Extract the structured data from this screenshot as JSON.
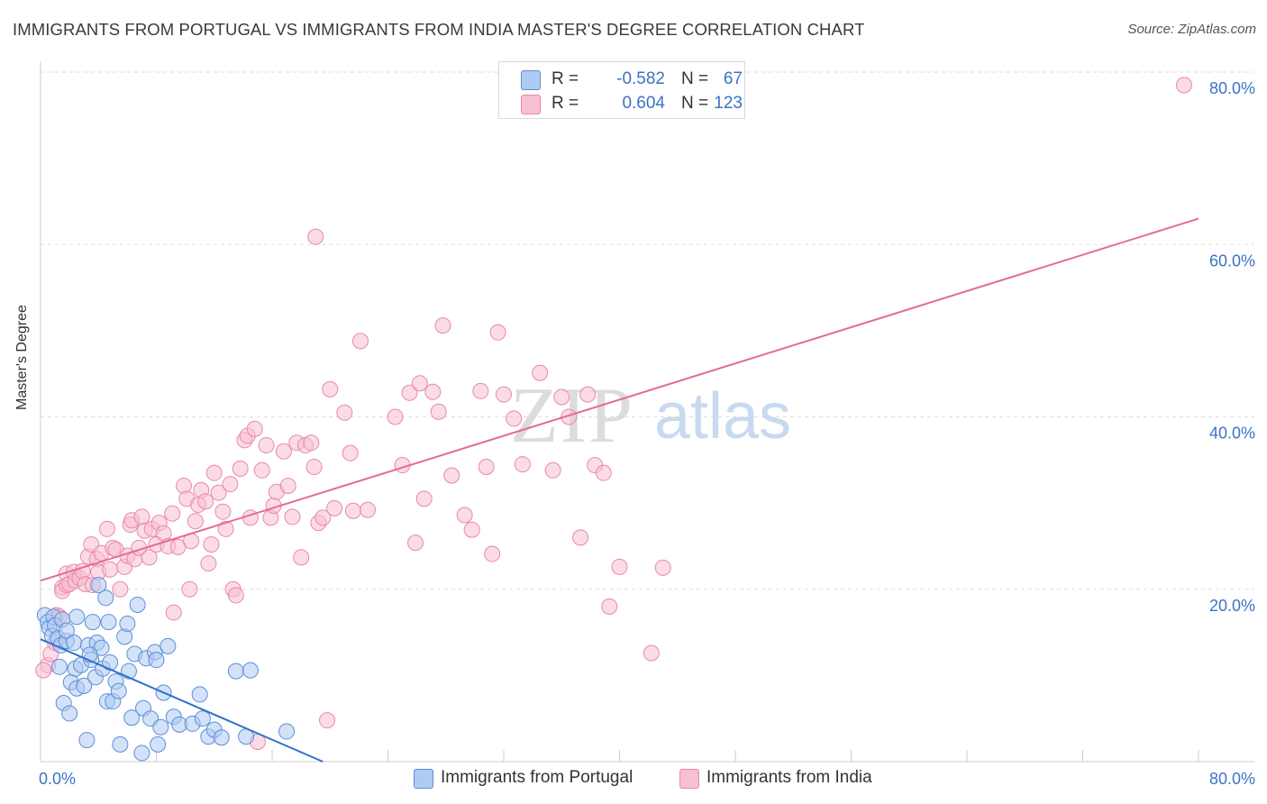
{
  "title": "IMMIGRANTS FROM PORTUGAL VS IMMIGRANTS FROM INDIA MASTER'S DEGREE CORRELATION CHART",
  "source": "Source: ZipAtlas.com",
  "watermark": {
    "zip": "ZIP",
    "atlas": "atlas"
  },
  "legend": {
    "r_label": "R =",
    "n_label": "N =",
    "portugal": {
      "r": "-0.582",
      "n": "67"
    },
    "india": {
      "r": "0.604",
      "n": "123"
    }
  },
  "colors": {
    "portugal_fill": "#aecbf2",
    "portugal_stroke": "#5b8fd9",
    "portugal_line": "#2f72c9",
    "india_fill": "#f7bfd2",
    "india_stroke": "#e889a8",
    "india_line": "#e56b94",
    "axis_label": "#3b73c4"
  },
  "chart_data": {
    "type": "scatter",
    "title": "IMMIGRANTS FROM PORTUGAL VS IMMIGRANTS FROM INDIA MASTER'S DEGREE CORRELATION CHART",
    "xlabel": "",
    "ylabel": "Master's Degree",
    "xlim": [
      0,
      80
    ],
    "ylim": [
      0,
      80
    ],
    "x_tick_labels": [
      "0.0%",
      "80.0%"
    ],
    "y_tick_labels": [
      {
        "value": 80,
        "label": "80.0%"
      },
      {
        "value": 60,
        "label": "60.0%"
      },
      {
        "value": 40,
        "label": "40.0%"
      },
      {
        "value": 20,
        "label": "20.0%"
      }
    ],
    "grid": true,
    "series": [
      {
        "name": "Immigrants from Portugal",
        "r": -0.582,
        "n": 67,
        "trend": {
          "x": [
            0,
            19.5
          ],
          "y": [
            14.2,
            0
          ]
        },
        "points": [
          [
            0.3,
            17.0
          ],
          [
            0.5,
            16.2
          ],
          [
            0.6,
            15.5
          ],
          [
            0.8,
            14.6
          ],
          [
            0.9,
            16.8
          ],
          [
            1.0,
            15.8
          ],
          [
            1.2,
            14.3
          ],
          [
            1.3,
            11.0
          ],
          [
            1.4,
            13.5
          ],
          [
            1.5,
            16.5
          ],
          [
            1.6,
            6.8
          ],
          [
            1.8,
            14.0
          ],
          [
            1.8,
            15.2
          ],
          [
            2.0,
            5.6
          ],
          [
            2.1,
            9.2
          ],
          [
            2.3,
            13.8
          ],
          [
            2.4,
            10.8
          ],
          [
            2.5,
            8.5
          ],
          [
            2.5,
            16.8
          ],
          [
            2.8,
            11.2
          ],
          [
            3.0,
            8.8
          ],
          [
            3.2,
            2.5
          ],
          [
            3.3,
            13.5
          ],
          [
            3.5,
            11.8
          ],
          [
            3.6,
            16.2
          ],
          [
            3.8,
            9.8
          ],
          [
            3.9,
            13.8
          ],
          [
            4.0,
            20.5
          ],
          [
            4.2,
            13.2
          ],
          [
            4.3,
            10.8
          ],
          [
            4.5,
            19.0
          ],
          [
            4.6,
            7.0
          ],
          [
            4.7,
            16.2
          ],
          [
            4.8,
            11.5
          ],
          [
            5.0,
            7.0
          ],
          [
            5.2,
            9.3
          ],
          [
            5.5,
            2.0
          ],
          [
            5.8,
            14.5
          ],
          [
            6.1,
            10.5
          ],
          [
            6.3,
            5.1
          ],
          [
            6.5,
            12.5
          ],
          [
            6.7,
            18.2
          ],
          [
            7.0,
            1.0
          ],
          [
            7.1,
            6.2
          ],
          [
            7.3,
            12.0
          ],
          [
            7.6,
            5.0
          ],
          [
            7.9,
            12.7
          ],
          [
            8.0,
            11.8
          ],
          [
            8.1,
            2.0
          ],
          [
            8.3,
            4.0
          ],
          [
            8.5,
            8.0
          ],
          [
            8.8,
            13.4
          ],
          [
            9.2,
            5.2
          ],
          [
            9.6,
            4.3
          ],
          [
            10.5,
            4.4
          ],
          [
            11.0,
            7.8
          ],
          [
            11.2,
            5.0
          ],
          [
            11.6,
            2.9
          ],
          [
            12.0,
            3.7
          ],
          [
            12.5,
            2.8
          ],
          [
            13.5,
            10.5
          ],
          [
            14.2,
            2.9
          ],
          [
            14.5,
            10.6
          ],
          [
            17.0,
            3.5
          ],
          [
            5.4,
            8.2
          ],
          [
            3.4,
            12.4
          ],
          [
            6.0,
            16.0
          ]
        ]
      },
      {
        "name": "Immigrants from India",
        "r": 0.604,
        "n": 123,
        "trend": {
          "x": [
            0,
            80
          ],
          "y": [
            21.0,
            63.0
          ]
        },
        "points": [
          [
            0.5,
            11.2
          ],
          [
            0.7,
            12.5
          ],
          [
            1.0,
            13.8
          ],
          [
            1.1,
            17.0
          ],
          [
            1.3,
            16.8
          ],
          [
            1.5,
            20.2
          ],
          [
            1.5,
            19.8
          ],
          [
            1.8,
            20.5
          ],
          [
            1.8,
            21.8
          ],
          [
            2.0,
            20.6
          ],
          [
            2.3,
            22.0
          ],
          [
            2.4,
            21.0
          ],
          [
            2.7,
            21.3
          ],
          [
            2.9,
            22.1
          ],
          [
            3.1,
            20.6
          ],
          [
            3.3,
            23.8
          ],
          [
            3.5,
            25.2
          ],
          [
            3.6,
            20.5
          ],
          [
            3.9,
            23.5
          ],
          [
            4.0,
            22.0
          ],
          [
            4.2,
            24.2
          ],
          [
            4.6,
            27.0
          ],
          [
            4.8,
            22.3
          ],
          [
            5.0,
            24.8
          ],
          [
            5.2,
            24.6
          ],
          [
            5.5,
            20.0
          ],
          [
            5.8,
            22.6
          ],
          [
            6.0,
            23.9
          ],
          [
            6.2,
            27.5
          ],
          [
            6.3,
            28.0
          ],
          [
            6.5,
            23.5
          ],
          [
            6.8,
            24.8
          ],
          [
            7.0,
            28.4
          ],
          [
            7.2,
            26.8
          ],
          [
            7.5,
            23.7
          ],
          [
            7.7,
            27.0
          ],
          [
            8.0,
            25.2
          ],
          [
            8.2,
            27.7
          ],
          [
            8.5,
            26.5
          ],
          [
            8.8,
            25.0
          ],
          [
            9.1,
            28.8
          ],
          [
            9.2,
            17.3
          ],
          [
            9.5,
            24.9
          ],
          [
            9.9,
            32.0
          ],
          [
            10.1,
            30.5
          ],
          [
            10.3,
            20.0
          ],
          [
            10.4,
            25.6
          ],
          [
            10.7,
            27.9
          ],
          [
            10.9,
            29.8
          ],
          [
            11.1,
            31.5
          ],
          [
            11.4,
            30.2
          ],
          [
            11.6,
            23.0
          ],
          [
            11.8,
            25.2
          ],
          [
            12.0,
            33.5
          ],
          [
            12.3,
            31.2
          ],
          [
            12.6,
            29.0
          ],
          [
            12.8,
            27.0
          ],
          [
            13.1,
            32.2
          ],
          [
            13.3,
            20.0
          ],
          [
            13.5,
            19.3
          ],
          [
            13.8,
            34.0
          ],
          [
            14.1,
            37.3
          ],
          [
            14.3,
            37.8
          ],
          [
            14.5,
            28.3
          ],
          [
            14.8,
            38.6
          ],
          [
            15.3,
            33.8
          ],
          [
            15.6,
            36.7
          ],
          [
            15.9,
            28.3
          ],
          [
            16.1,
            29.7
          ],
          [
            16.3,
            31.3
          ],
          [
            16.8,
            36.0
          ],
          [
            17.1,
            32.0
          ],
          [
            17.4,
            28.4
          ],
          [
            17.7,
            37.0
          ],
          [
            18.0,
            23.7
          ],
          [
            18.3,
            36.7
          ],
          [
            18.7,
            37.0
          ],
          [
            18.9,
            34.2
          ],
          [
            19.2,
            27.7
          ],
          [
            19.5,
            28.3
          ],
          [
            19.0,
            60.9
          ],
          [
            19.8,
            4.8
          ],
          [
            20.0,
            43.2
          ],
          [
            20.3,
            29.4
          ],
          [
            21.0,
            40.5
          ],
          [
            21.4,
            35.8
          ],
          [
            21.6,
            29.1
          ],
          [
            22.1,
            48.8
          ],
          [
            22.6,
            29.2
          ],
          [
            24.5,
            40.0
          ],
          [
            25.0,
            34.4
          ],
          [
            25.5,
            42.8
          ],
          [
            25.9,
            25.4
          ],
          [
            26.2,
            43.9
          ],
          [
            26.5,
            30.5
          ],
          [
            27.1,
            42.9
          ],
          [
            27.5,
            40.6
          ],
          [
            27.8,
            50.6
          ],
          [
            28.4,
            33.2
          ],
          [
            29.3,
            28.6
          ],
          [
            29.8,
            26.9
          ],
          [
            30.4,
            43.0
          ],
          [
            30.8,
            34.2
          ],
          [
            31.2,
            24.1
          ],
          [
            31.6,
            49.8
          ],
          [
            32.0,
            42.6
          ],
          [
            32.7,
            39.8
          ],
          [
            33.3,
            34.5
          ],
          [
            34.5,
            45.1
          ],
          [
            35.4,
            33.8
          ],
          [
            36.0,
            42.3
          ],
          [
            36.5,
            40.0
          ],
          [
            37.3,
            26.0
          ],
          [
            37.8,
            42.6
          ],
          [
            38.3,
            34.4
          ],
          [
            38.9,
            33.5
          ],
          [
            39.3,
            18.0
          ],
          [
            40.0,
            22.6
          ],
          [
            42.2,
            12.6
          ],
          [
            43.0,
            22.5
          ],
          [
            79.0,
            78.5
          ],
          [
            15.0,
            2.3
          ],
          [
            0.2,
            10.6
          ]
        ]
      }
    ]
  },
  "bottom_legend": {
    "portugal_label": "Immigrants from Portugal",
    "india_label": "Immigrants from India"
  }
}
